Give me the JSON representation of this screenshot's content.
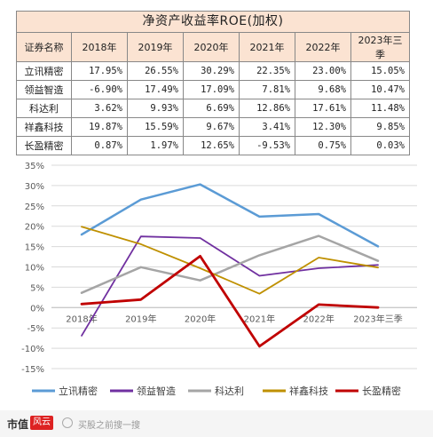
{
  "title": "净资产收益率ROE(加权)",
  "table": {
    "header_label": "证券名称",
    "columns": [
      "2018年",
      "2019年",
      "2020年",
      "2021年",
      "2022年",
      "2023年三季"
    ],
    "rows": [
      {
        "name": "立讯精密",
        "cells": [
          "17.95%",
          "26.55%",
          "30.29%",
          "22.35%",
          "23.00%",
          "15.05%"
        ]
      },
      {
        "name": "领益智造",
        "cells": [
          "-6.90%",
          "17.49%",
          "17.09%",
          "7.81%",
          "9.68%",
          "10.47%"
        ]
      },
      {
        "name": "科达利",
        "cells": [
          "3.62%",
          "9.93%",
          "6.69%",
          "12.86%",
          "17.61%",
          "11.48%"
        ]
      },
      {
        "name": "祥鑫科技",
        "cells": [
          "19.87%",
          "15.59%",
          "9.67%",
          "3.41%",
          "12.30%",
          "9.85%"
        ]
      },
      {
        "name": "长盈精密",
        "cells": [
          "0.87%",
          "1.97%",
          "12.65%",
          "-9.53%",
          "0.75%",
          "0.03%"
        ]
      }
    ]
  },
  "chart_data": {
    "type": "line",
    "categories": [
      "2018年",
      "2019年",
      "2020年",
      "2021年",
      "2022年",
      "2023年三季"
    ],
    "yticks": [
      "-15%",
      "-10%",
      "-5%",
      "0%",
      "5%",
      "10%",
      "15%",
      "20%",
      "25%",
      "30%",
      "35%"
    ],
    "ylim": [
      -15,
      35
    ],
    "grid": true,
    "legend_position": "bottom",
    "series": [
      {
        "name": "立讯精密",
        "color": "#5b9bd5",
        "width": 2.5,
        "values": [
          17.95,
          26.55,
          30.29,
          22.35,
          23.0,
          15.05
        ]
      },
      {
        "name": "领益智造",
        "color": "#7030a0",
        "width": 1.8,
        "values": [
          -6.9,
          17.49,
          17.09,
          7.81,
          9.68,
          10.47
        ]
      },
      {
        "name": "科达利",
        "color": "#a5a5a5",
        "width": 2.5,
        "values": [
          3.62,
          9.93,
          6.69,
          12.86,
          17.61,
          11.48
        ]
      },
      {
        "name": "祥鑫科技",
        "color": "#bf9000",
        "width": 1.8,
        "values": [
          19.87,
          15.59,
          9.67,
          3.41,
          12.3,
          9.85
        ]
      },
      {
        "name": "长盈精密",
        "color": "#c00000",
        "width": 2.8,
        "values": [
          0.87,
          1.97,
          12.65,
          -9.53,
          0.75,
          0.03
        ]
      }
    ]
  },
  "footer": {
    "logo": "市值",
    "badge": "风云",
    "text": "买股之前搜一搜"
  }
}
